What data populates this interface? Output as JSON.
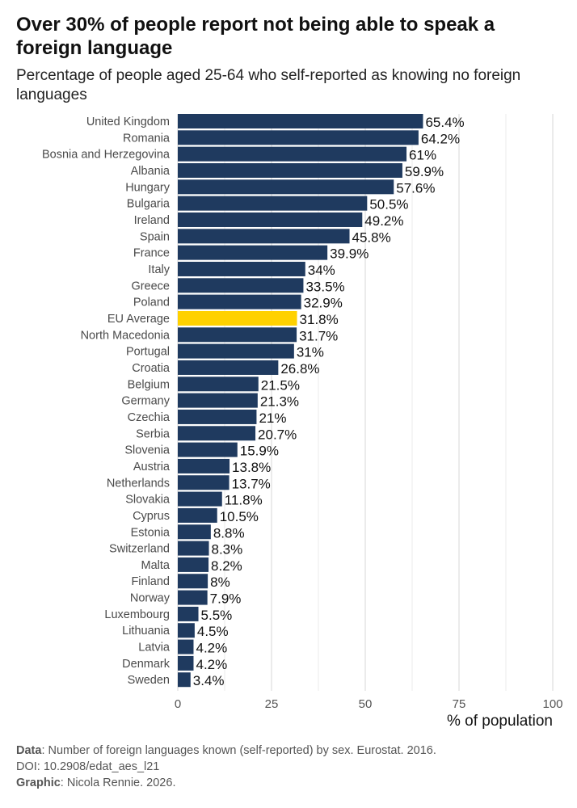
{
  "title": "Over 30% of people report not being able to speak a foreign language",
  "subtitle": "Percentage of people aged 25-64 who self-reported as knowing no foreign languages",
  "caption": {
    "data_label": "Data",
    "data_text": ": Number of foreign languages known (self-reported) by sex. Eurostat. 2016.",
    "doi": "DOI: 10.2908/edat_aes_l21",
    "graphic_label": "Graphic",
    "graphic_text": ": Nicola Rennie. 2026."
  },
  "chart_data": {
    "type": "bar",
    "orientation": "horizontal",
    "title": "Over 30% of people report not being able to speak a foreign language",
    "xlabel": "% of population",
    "ylabel": "",
    "xlim": [
      0,
      100
    ],
    "xticks": [
      0,
      25,
      50,
      75,
      100
    ],
    "grid": true,
    "highlight": "EU Average",
    "colors": {
      "bar": "#1f3a5f",
      "highlight": "#ffd100",
      "grid": "#e6e6e6"
    },
    "categories": [
      "United Kingdom",
      "Romania",
      "Bosnia and Herzegovina",
      "Albania",
      "Hungary",
      "Bulgaria",
      "Ireland",
      "Spain",
      "France",
      "Italy",
      "Greece",
      "Poland",
      "EU Average",
      "North Macedonia",
      "Portugal",
      "Croatia",
      "Belgium",
      "Germany",
      "Czechia",
      "Serbia",
      "Slovenia",
      "Austria",
      "Netherlands",
      "Slovakia",
      "Cyprus",
      "Estonia",
      "Switzerland",
      "Malta",
      "Finland",
      "Norway",
      "Luxembourg",
      "Lithuania",
      "Latvia",
      "Denmark",
      "Sweden"
    ],
    "values": [
      65.4,
      64.2,
      61,
      59.9,
      57.6,
      50.5,
      49.2,
      45.8,
      39.9,
      34,
      33.5,
      32.9,
      31.8,
      31.7,
      31,
      26.8,
      21.5,
      21.3,
      21,
      20.7,
      15.9,
      13.8,
      13.7,
      11.8,
      10.5,
      8.8,
      8.3,
      8.2,
      8,
      7.9,
      5.5,
      4.5,
      4.2,
      4.2,
      3.4
    ],
    "labels": [
      "65.4%",
      "64.2%",
      "61%",
      "59.9%",
      "57.6%",
      "50.5%",
      "49.2%",
      "45.8%",
      "39.9%",
      "34%",
      "33.5%",
      "32.9%",
      "31.8%",
      "31.7%",
      "31%",
      "26.8%",
      "21.5%",
      "21.3%",
      "21%",
      "20.7%",
      "15.9%",
      "13.8%",
      "13.7%",
      "11.8%",
      "10.5%",
      "8.8%",
      "8.3%",
      "8.2%",
      "8%",
      "7.9%",
      "5.5%",
      "4.5%",
      "4.2%",
      "4.2%",
      "3.4%"
    ]
  }
}
